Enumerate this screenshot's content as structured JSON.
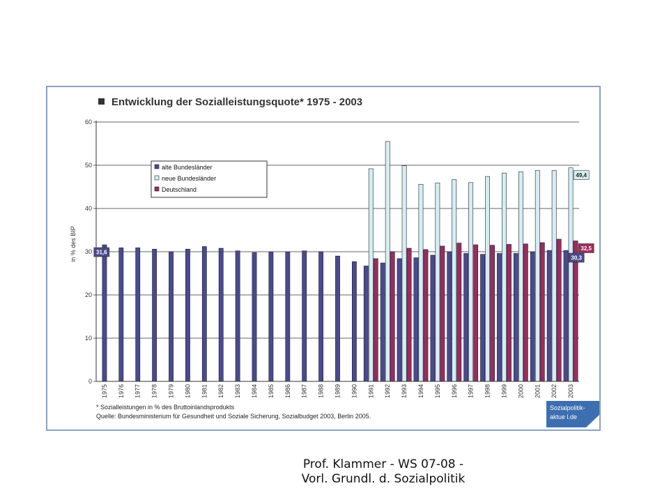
{
  "chart_data": {
    "type": "bar",
    "title": "Entwicklung der Sozialleistungsquote* 1975 - 2003",
    "ylabel": "in % des BIP",
    "ylim": [
      0,
      60
    ],
    "yticks": [
      "0",
      "10",
      "20",
      "30",
      "40",
      "50",
      "60"
    ],
    "grid": true,
    "legend_position": "top-left",
    "categories": [
      "1975",
      "1976",
      "1977",
      "1978",
      "1979",
      "1980",
      "1981",
      "1982",
      "1983",
      "1984",
      "1985",
      "1986",
      "1987",
      "1988",
      "1989",
      "1990",
      "1991",
      "1992",
      "1993",
      "1994",
      "1995",
      "1996",
      "1997",
      "1998",
      "1999",
      "2000",
      "2001",
      "2002",
      "2003"
    ],
    "series": [
      {
        "name": "alte Bundesländer",
        "color": "#4a4a8c",
        "values": [
          31.6,
          30.9,
          30.9,
          30.6,
          30.0,
          30.6,
          31.2,
          30.8,
          30.2,
          29.8,
          29.9,
          29.9,
          30.2,
          30.0,
          29.0,
          27.7,
          26.7,
          27.4,
          28.4,
          28.6,
          29.2,
          30.0,
          29.6,
          29.4,
          29.6,
          29.6,
          29.9,
          30.3,
          30.3
        ]
      },
      {
        "name": "neue Bundesländer",
        "color": "#d5eef0",
        "values": [
          null,
          null,
          null,
          null,
          null,
          null,
          null,
          null,
          null,
          null,
          null,
          null,
          null,
          null,
          null,
          null,
          49.2,
          55.5,
          49.9,
          45.6,
          45.9,
          46.7,
          46.0,
          47.4,
          48.2,
          48.5,
          48.8,
          48.8,
          49.4
        ]
      },
      {
        "name": "Deutschland",
        "color": "#9c2b5c",
        "values": [
          null,
          null,
          null,
          null,
          null,
          null,
          null,
          null,
          null,
          null,
          null,
          null,
          null,
          null,
          null,
          null,
          28.4,
          30.0,
          30.8,
          30.5,
          31.3,
          32.0,
          31.6,
          31.5,
          31.7,
          31.8,
          32.1,
          32.9,
          32.5
        ]
      }
    ],
    "annotations": [
      {
        "label": "31,6",
        "category": "1975",
        "series": "alte Bundesländer",
        "side": "left"
      },
      {
        "label": "49,4",
        "category": "2003",
        "series": "neue Bundesländer",
        "side": "right"
      },
      {
        "label": "32,5",
        "category": "2003",
        "series": "Deutschland",
        "side": "right"
      },
      {
        "label": "30,3",
        "category": "2003",
        "series": "alte Bundesländer",
        "side": "right"
      }
    ],
    "footnotes": [
      "* Sozialleistungen in % des Bruttoinlandsprodukts",
      "Quelle: Bundesministerium für Gesundheit und Soziale Sicherung, Sozialbudget 2003, Berlin 2005."
    ]
  },
  "logo": {
    "lines": [
      "Sozialpolitik-",
      "aktue l.de"
    ],
    "color": "#3d6fb0"
  },
  "footer": {
    "line1": "Prof. Klammer - WS 07-08 -",
    "line2": "Vorl. Grundl. d. Sozialpolitik"
  }
}
